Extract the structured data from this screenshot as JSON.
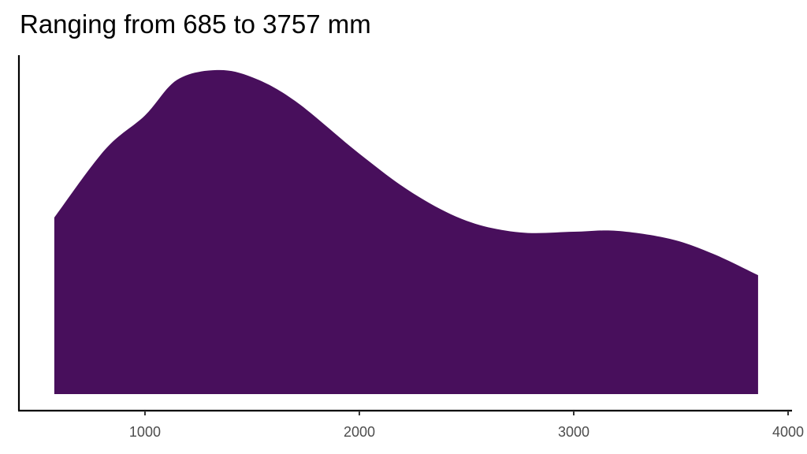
{
  "chart_data": {
    "type": "area",
    "title": "Ranging from 685 to 3757 mm",
    "xlabel": "",
    "ylabel": "",
    "xlim": [
      412,
      4011
    ],
    "ylim": [
      -0.051,
      1.046
    ],
    "x_ticks": [
      1000,
      2000,
      3000,
      4000
    ],
    "x_tick_labels": [
      "1000",
      "2000",
      "3000",
      "4000"
    ],
    "y_ticks": [],
    "grid": false,
    "legend": "none",
    "fill_color": "#480F5C",
    "series": [
      {
        "x": [
          577,
          813,
          1000,
          1150,
          1335,
          1500,
          1700,
          2000,
          2250,
          2500,
          2750,
          3000,
          3200,
          3450,
          3650,
          3860
        ],
        "y": [
          0.545,
          0.754,
          0.86,
          0.97,
          1.0,
          0.978,
          0.905,
          0.742,
          0.62,
          0.535,
          0.499,
          0.501,
          0.504,
          0.479,
          0.433,
          0.367
        ]
      }
    ]
  }
}
